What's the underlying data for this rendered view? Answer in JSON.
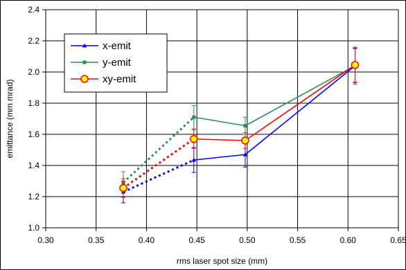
{
  "chart_data": {
    "type": "line",
    "xlabel": "rms laser spot size (mm)",
    "ylabel": "emittance (mm mrad)",
    "xlim": [
      0.3,
      0.65
    ],
    "ylim": [
      1.0,
      2.4
    ],
    "x_ticks": [
      "0.30",
      "0.35",
      "0.40",
      "0.45",
      "0.50",
      "0.55",
      "0.60",
      "0.65"
    ],
    "y_ticks": [
      "1.0",
      "1.2",
      "1.4",
      "1.6",
      "1.8",
      "2.0",
      "2.2",
      "2.4"
    ],
    "grid": true,
    "legend_placement": "top-left",
    "series": [
      {
        "name": "x-emit",
        "color": "#0000ff",
        "marker": "triangle",
        "x": [
          0.377,
          0.447,
          0.498,
          0.607
        ],
        "y": [
          1.23,
          1.435,
          1.47,
          2.04
        ],
        "err": [
          0.07,
          0.08,
          0.08,
          0.11
        ],
        "dotted_segments": [
          0
        ]
      },
      {
        "name": "y-emit",
        "color": "#2e8b57",
        "marker": "square",
        "x": [
          0.377,
          0.447,
          0.498,
          0.607
        ],
        "y": [
          1.29,
          1.71,
          1.655,
          2.04
        ],
        "err": [
          0.07,
          0.075,
          0.055,
          0.12
        ],
        "dotted_segments": [
          0
        ]
      },
      {
        "name": "xy-emit",
        "color": "#ff0000",
        "marker": "circle",
        "x": [
          0.377,
          0.447,
          0.498,
          0.607
        ],
        "y": [
          1.255,
          1.57,
          1.56,
          2.045
        ],
        "err": [
          0.06,
          0.06,
          0.05,
          0.11
        ],
        "dotted_segments": [
          0
        ]
      }
    ]
  }
}
